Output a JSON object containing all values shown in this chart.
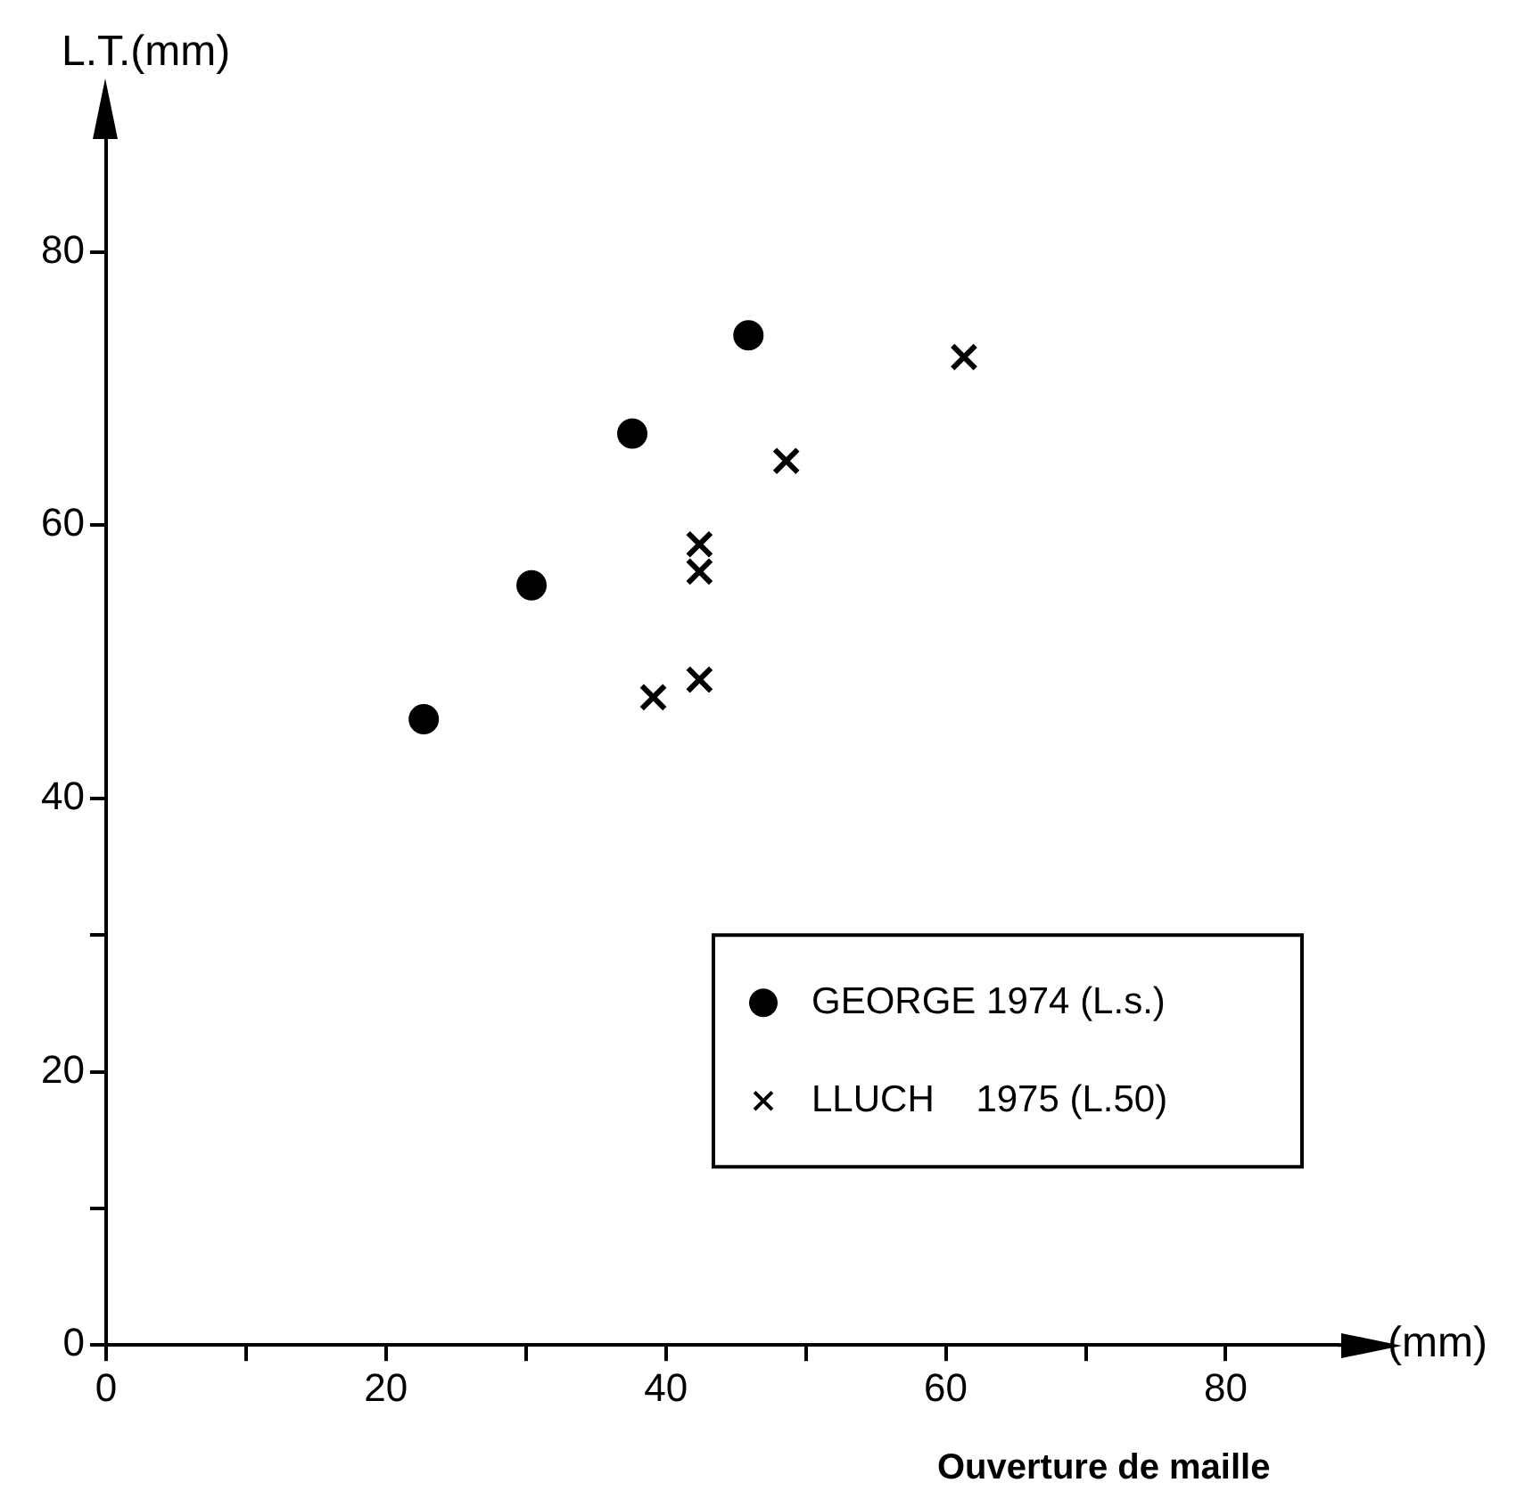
{
  "chart_data": {
    "type": "scatter",
    "xlabel": "Ouverture de maille",
    "ylabel": "L.T.(mm)",
    "annotations": [
      "(mm)"
    ],
    "xlim": [
      0,
      88
    ],
    "ylim": [
      0,
      88
    ],
    "xticks": [
      0,
      {
        "value": 10,
        "label": null
      },
      20,
      {
        "value": 30,
        "label": null
      },
      40,
      {
        "value": 50,
        "label": null
      },
      60,
      {
        "value": 70,
        "label": null
      },
      80
    ],
    "yticks": [
      0,
      {
        "value": 10,
        "label": null
      },
      20,
      {
        "value": 30,
        "label": null
      },
      40,
      60,
      80
    ],
    "grid": false,
    "legend": "bottom right",
    "series": [
      {
        "name": "GEORGE 1974 (L.s.)",
        "color": "#000000",
        "marker": "circle",
        "x": [
          22.7,
          30.4,
          37.6,
          45.9
        ],
        "values": [
          45.8,
          55.6,
          66.7,
          73.9
        ]
      },
      {
        "name": "LLUCH    1975 (L.50)",
        "color": "#000000",
        "marker": "cross",
        "x": [
          61.3,
          48.6,
          42.4,
          42.4,
          42.4,
          39.1
        ],
        "values": [
          72.3,
          64.7,
          58.6,
          56.6,
          48.7,
          47.4
        ]
      }
    ]
  }
}
